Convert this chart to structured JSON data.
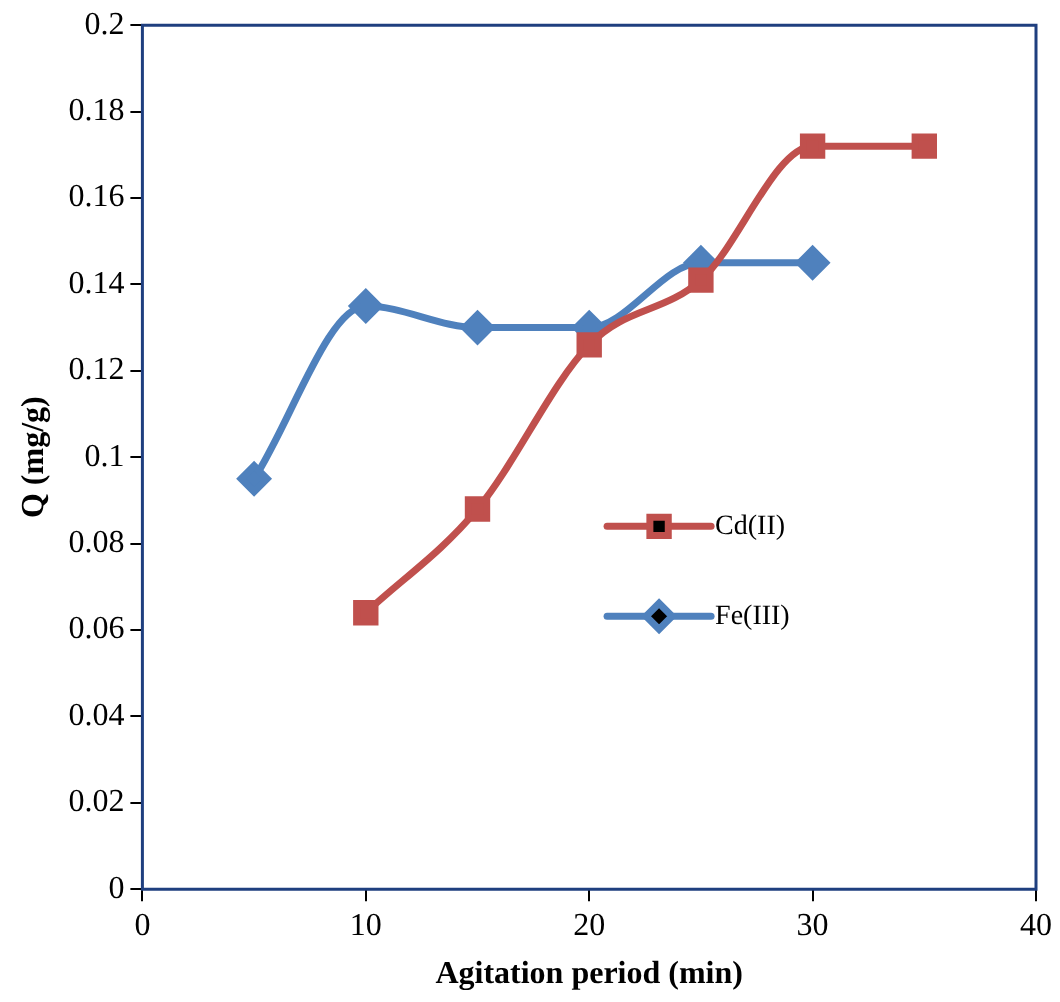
{
  "chart_data": {
    "type": "line",
    "xlabel": "Agitation period (min)",
    "ylabel": "Q (mg/g)",
    "xlim": [
      0,
      40
    ],
    "xticks": [
      0,
      10,
      20,
      30,
      40
    ],
    "ylim": [
      0,
      0.2
    ],
    "yticks": [
      0,
      0.02,
      0.04,
      0.06,
      0.08,
      0.1,
      0.12,
      0.14,
      0.16,
      0.18,
      0.2
    ],
    "grid": false,
    "legend": "right",
    "series": [
      {
        "name": "Cd(II)",
        "color": "#c0504d",
        "marker": "square",
        "x": [
          10,
          15,
          20,
          25,
          30,
          35
        ],
        "values": [
          0.064,
          0.088,
          0.126,
          0.141,
          0.172,
          0.172
        ]
      },
      {
        "name": "Fe(III)",
        "color": "#4f81bd",
        "marker": "diamond",
        "x": [
          5,
          10,
          15,
          20,
          25,
          30
        ],
        "values": [
          0.095,
          0.135,
          0.13,
          0.13,
          0.145,
          0.145
        ]
      }
    ]
  }
}
